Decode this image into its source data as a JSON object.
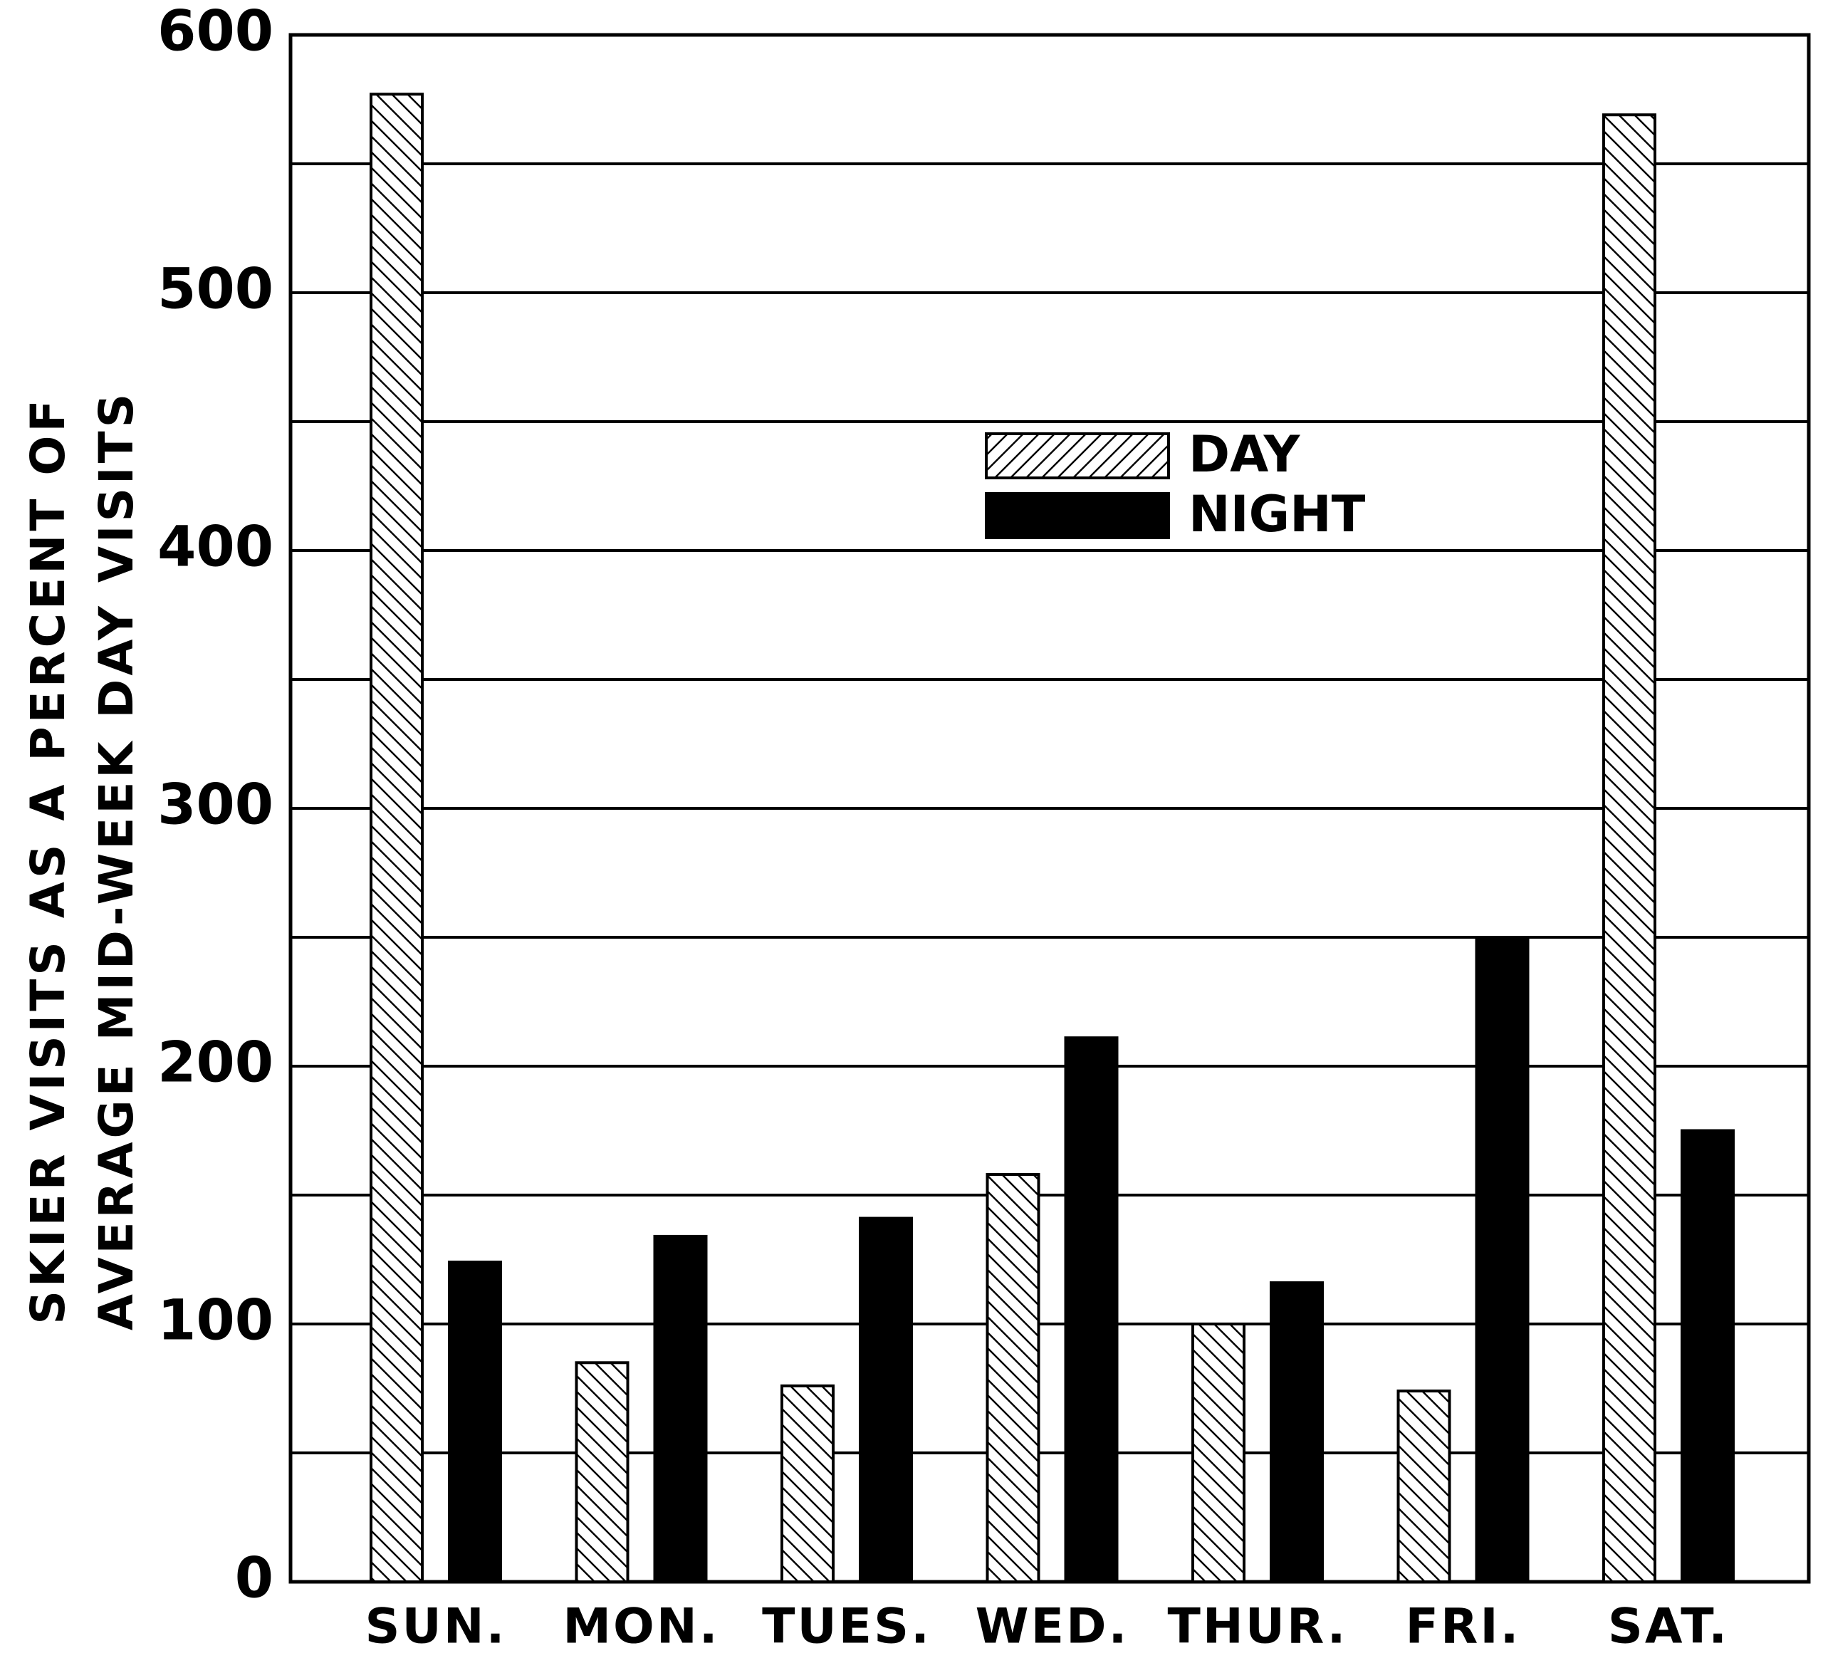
{
  "chart_data": {
    "type": "bar",
    "ylabel": [
      "SKIER VISITS AS A PERCENT OF",
      "AVERAGE MID-WEEK DAY VISITS"
    ],
    "categories": [
      "SUN.",
      "MON.",
      "TUES.",
      "WED.",
      "THUR.",
      "FRI.",
      "SAT."
    ],
    "series": [
      {
        "name": "DAY",
        "color": "#ffffff",
        "hatch": true,
        "values": [
          577,
          85,
          76,
          158,
          100,
          74,
          569
        ]
      },
      {
        "name": "NIGHT",
        "color": "#000000",
        "hatch": false,
        "values": [
          124,
          134,
          141,
          211,
          116,
          250,
          175
        ]
      }
    ],
    "ylim": [
      0,
      600
    ],
    "yticks": [
      0,
      100,
      200,
      300,
      400,
      500,
      600
    ],
    "minor_yticks": [
      50,
      150,
      250,
      350,
      450,
      550
    ],
    "grid": true
  }
}
